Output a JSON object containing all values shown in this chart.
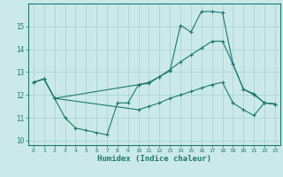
{
  "title": "",
  "xlabel": "Humidex (Indice chaleur)",
  "ylabel": "",
  "background_color": "#cce9e9",
  "grid_color": "#aad4d4",
  "line_color": "#1a7a6e",
  "xlim": [
    -0.5,
    23.5
  ],
  "ylim": [
    9.8,
    16.0
  ],
  "xticks": [
    0,
    1,
    2,
    3,
    4,
    5,
    6,
    7,
    8,
    9,
    10,
    11,
    12,
    13,
    14,
    15,
    16,
    17,
    18,
    19,
    20,
    21,
    22,
    23
  ],
  "yticks": [
    10,
    11,
    12,
    13,
    14,
    15
  ],
  "series1_x": [
    0,
    1,
    2,
    3,
    4,
    5,
    6,
    7,
    8,
    9,
    10,
    11,
    12,
    13,
    14,
    15,
    16,
    17,
    18,
    19,
    20,
    21,
    22,
    23
  ],
  "series1_y": [
    12.55,
    12.7,
    11.85,
    11.0,
    10.55,
    10.45,
    10.35,
    10.25,
    11.65,
    11.65,
    12.45,
    12.5,
    12.8,
    13.05,
    15.05,
    14.75,
    15.65,
    15.65,
    15.6,
    13.35,
    12.25,
    12.0,
    11.65,
    11.6
  ],
  "series2_x": [
    0,
    1,
    2,
    10,
    11,
    12,
    13,
    14,
    15,
    16,
    17,
    18,
    19,
    20,
    21,
    22,
    23
  ],
  "series2_y": [
    12.55,
    12.7,
    11.85,
    12.45,
    12.55,
    12.8,
    13.1,
    13.45,
    13.75,
    14.05,
    14.35,
    14.35,
    13.35,
    12.25,
    12.05,
    11.65,
    11.6
  ],
  "series3_x": [
    0,
    1,
    2,
    10,
    11,
    12,
    13,
    14,
    15,
    16,
    17,
    18,
    19,
    20,
    21,
    22,
    23
  ],
  "series3_y": [
    12.55,
    12.7,
    11.85,
    11.35,
    11.5,
    11.65,
    11.85,
    12.0,
    12.15,
    12.3,
    12.45,
    12.55,
    11.65,
    11.35,
    11.1,
    11.65,
    11.6
  ]
}
